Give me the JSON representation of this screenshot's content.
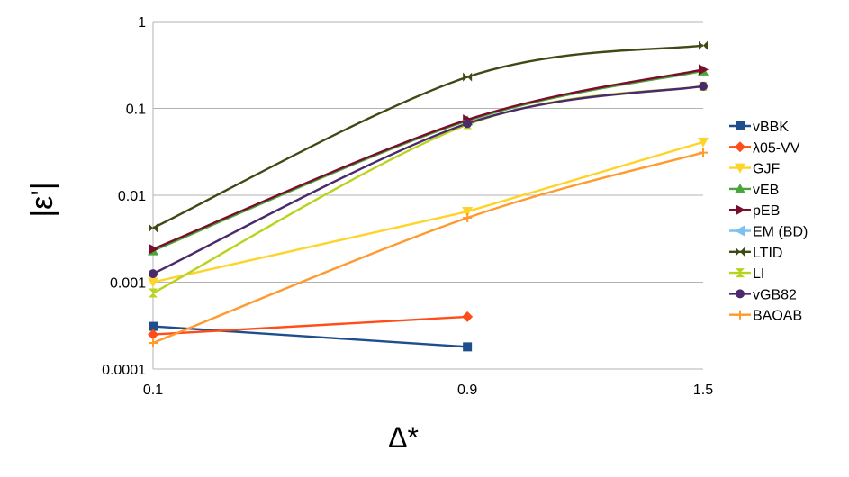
{
  "chart_data": {
    "type": "line",
    "xlabel": "Δ*",
    "ylabel": "|ε'|",
    "x_categories": [
      "0.1",
      "0.9",
      "1.5"
    ],
    "y_scale": "log",
    "ylim": [
      0.0001,
      1
    ],
    "y_tick_labels": [
      "1",
      "0.1",
      "0.01",
      "0.001",
      "0.0001"
    ],
    "grid": "horizontal",
    "legend_position": "right",
    "series": [
      {
        "name": "vBBK",
        "color": "#1f4e8c",
        "marker": "square",
        "smooth": false,
        "values": [
          0.00031,
          0.00018,
          null
        ]
      },
      {
        "name": "λ05-VV",
        "color": "#ff4d1a",
        "marker": "diamond",
        "smooth": false,
        "values": [
          0.00025,
          0.0004,
          null
        ]
      },
      {
        "name": "GJF",
        "color": "#ffd42a",
        "marker": "triangle-down",
        "smooth": false,
        "values": [
          0.001,
          0.0065,
          0.041
        ]
      },
      {
        "name": "vEB",
        "color": "#4aa53a",
        "marker": "triangle-up",
        "smooth": true,
        "values": [
          0.0023,
          0.072,
          0.27
        ]
      },
      {
        "name": "pEB",
        "color": "#7a0d2a",
        "marker": "triangle-right",
        "smooth": true,
        "values": [
          0.0024,
          0.074,
          0.28
        ]
      },
      {
        "name": "EM (BD)",
        "color": "#7ec0ee",
        "marker": "triangle-left",
        "smooth": true,
        "values": [
          null,
          null,
          null
        ]
      },
      {
        "name": "LTID",
        "color": "#3e4a14",
        "marker": "bowtie",
        "smooth": true,
        "values": [
          0.0042,
          0.23,
          0.53
        ]
      },
      {
        "name": "LI",
        "color": "#b9d31c",
        "marker": "hourglass",
        "smooth": true,
        "values": [
          0.00075,
          0.065,
          0.18
        ]
      },
      {
        "name": "vGB82",
        "color": "#4b2a6b",
        "marker": "circle",
        "smooth": true,
        "values": [
          0.00125,
          0.067,
          0.18
        ]
      },
      {
        "name": "BAOAB",
        "color": "#ff9a2e",
        "marker": "plus",
        "smooth": true,
        "values": [
          0.0002,
          0.0055,
          0.031
        ]
      }
    ]
  }
}
